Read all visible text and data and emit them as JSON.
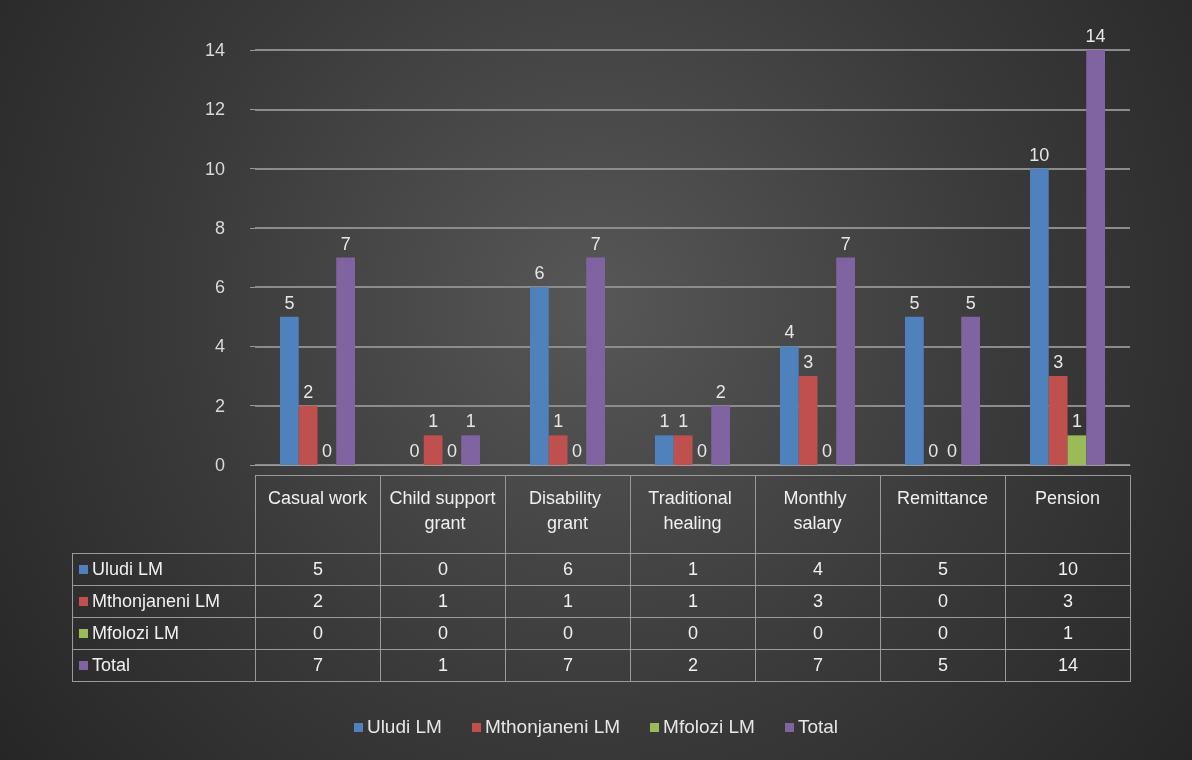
{
  "chart_data": {
    "type": "bar",
    "categories": [
      "Casual work",
      "Child support grant",
      "Disability grant",
      "Traditional healing",
      "Monthly salary",
      "Remittance",
      "Pension"
    ],
    "series": [
      {
        "name": "Uludi LM",
        "color": "#4f81bd",
        "values": [
          5,
          0,
          6,
          1,
          4,
          5,
          10
        ],
        "value_labels": [
          "5",
          "0",
          "6",
          "1",
          "4",
          "5",
          "10"
        ]
      },
      {
        "name": "Mthonjaneni LM",
        "color": "#c0504d",
        "values": [
          2,
          1,
          1,
          1,
          3,
          0,
          3
        ],
        "value_labels": [
          "2",
          "1",
          "1",
          "1",
          "3",
          "0",
          "3"
        ]
      },
      {
        "name": "Mfolozi LM",
        "color": "#9bbb59",
        "values": [
          0,
          0,
          0,
          0,
          0,
          0,
          1
        ],
        "value_labels": [
          "0",
          "0",
          "0",
          "0",
          "0",
          "0",
          "1"
        ]
      },
      {
        "name": "Total",
        "color": "#8064a2",
        "values": [
          7,
          1,
          7,
          2,
          7,
          5,
          14
        ],
        "value_labels": [
          "7",
          "1",
          "7",
          "2",
          "7",
          "5",
          "14"
        ]
      }
    ],
    "ylim": [
      0,
      14
    ],
    "yticks": [
      0,
      2,
      4,
      6,
      8,
      10,
      12,
      14
    ],
    "grid": "y",
    "legend": "bottom",
    "data_labels": true
  }
}
